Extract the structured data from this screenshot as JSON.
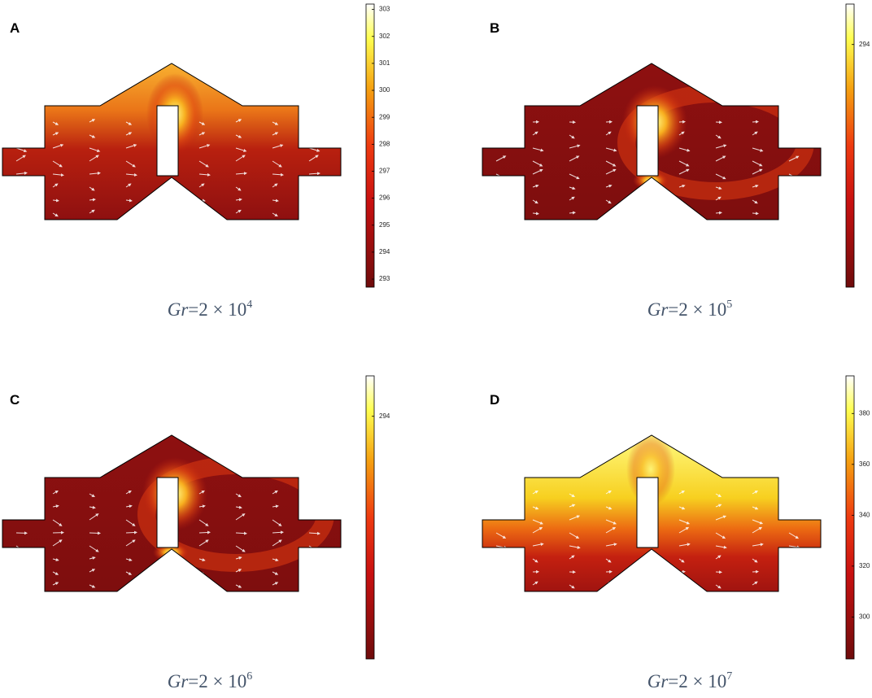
{
  "panels": [
    {
      "label": "A",
      "caption": {
        "variable": "Gr",
        "expression": "=2 × 10",
        "exponent": "4"
      },
      "colorbar": {
        "lim": [
          292.7,
          303.2
        ],
        "ticks": [
          293,
          294,
          295,
          296,
          297,
          298,
          299,
          300,
          301,
          302,
          303
        ]
      }
    },
    {
      "label": "B",
      "caption": {
        "variable": "Gr",
        "expression": "=2 × 10",
        "exponent": "5"
      },
      "colorbar": {
        "lim": [
          292.8,
          294.2
        ],
        "ticks": [
          294
        ]
      }
    },
    {
      "label": "C",
      "caption": {
        "variable": "Gr",
        "expression": "=2 × 10",
        "exponent": "6"
      },
      "colorbar": {
        "lim": [
          292.8,
          294.2
        ],
        "ticks": [
          294
        ]
      }
    },
    {
      "label": "D",
      "caption": {
        "variable": "Gr",
        "expression": "=2 × 10",
        "exponent": "7"
      },
      "colorbar": {
        "lim": [
          283.5,
          394.8
        ],
        "ticks": [
          300,
          320,
          340,
          360,
          380
        ]
      }
    }
  ]
}
